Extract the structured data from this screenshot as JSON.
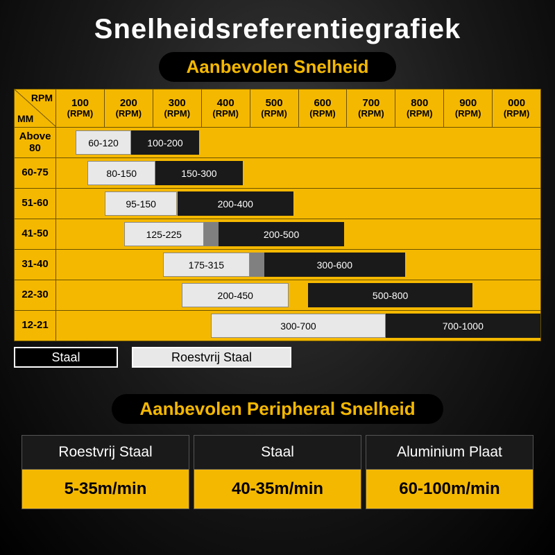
{
  "title": "Snelheidsreferentiegrafiek",
  "subtitle": "Aanbevolen Snelheid",
  "colors": {
    "accent": "#f5b800",
    "bg_dark": "#1a1a1a",
    "bar_light": "#e8e8e8",
    "bar_gray": "#808080",
    "border": "#6a5200"
  },
  "corner": {
    "top": "RPM",
    "bottom": "MM"
  },
  "columns": [
    {
      "n": "100",
      "u": "(RPM)"
    },
    {
      "n": "200",
      "u": "(RPM)"
    },
    {
      "n": "300",
      "u": "(RPM)"
    },
    {
      "n": "400",
      "u": "(RPM)"
    },
    {
      "n": "500",
      "u": "(RPM)"
    },
    {
      "n": "600",
      "u": "(RPM)"
    },
    {
      "n": "700",
      "u": "(RPM)"
    },
    {
      "n": "800",
      "u": "(RPM)"
    },
    {
      "n": "900",
      "u": "(RPM)"
    },
    {
      "n": "000",
      "u": "(RPM)"
    }
  ],
  "rows": [
    {
      "label": "Above 80",
      "bars": [
        {
          "kind": "light",
          "label": "60-120",
          "left": 4.0,
          "width": 11.5
        },
        {
          "kind": "dark",
          "label": "100-200",
          "left": 15.5,
          "width": 14.0
        }
      ]
    },
    {
      "label": "60-75",
      "bars": [
        {
          "kind": "light",
          "label": "80-150",
          "left": 6.5,
          "width": 14.0
        },
        {
          "kind": "dark",
          "label": "150-300",
          "left": 20.5,
          "width": 18.0
        }
      ]
    },
    {
      "label": "51-60",
      "bars": [
        {
          "kind": "light",
          "label": "95-150",
          "left": 10.0,
          "width": 15.0
        },
        {
          "kind": "dark",
          "label": "200-400",
          "left": 25.0,
          "width": 24.0
        }
      ]
    },
    {
      "label": "41-50",
      "bars": [
        {
          "kind": "light",
          "label": "125-225",
          "left": 14.0,
          "width": 16.5
        },
        {
          "kind": "gray",
          "label": "",
          "left": 30.5,
          "width": 3.0
        },
        {
          "kind": "dark",
          "label": "200-500",
          "left": 33.5,
          "width": 26.0
        }
      ]
    },
    {
      "label": "31-40",
      "bars": [
        {
          "kind": "light",
          "label": "175-315",
          "left": 22.0,
          "width": 18.0
        },
        {
          "kind": "gray",
          "label": "",
          "left": 40.0,
          "width": 3.0
        },
        {
          "kind": "dark",
          "label": "300-600",
          "left": 43.0,
          "width": 29.0
        }
      ]
    },
    {
      "label": "22-30",
      "bars": [
        {
          "kind": "light",
          "label": "200-450",
          "left": 26.0,
          "width": 22.0
        },
        {
          "kind": "dark",
          "label": "500-800",
          "left": 52.0,
          "width": 34.0
        }
      ]
    },
    {
      "label": "12-21",
      "bars": [
        {
          "kind": "light",
          "label": "300-700",
          "left": 32.0,
          "width": 36.0
        },
        {
          "kind": "dark",
          "label": "700-1000",
          "left": 68.0,
          "width": 32.0
        }
      ]
    }
  ],
  "legend": [
    {
      "kind": "dark",
      "label": "Staal"
    },
    {
      "kind": "light",
      "label": "Roestvrij Staal"
    }
  ],
  "peripheral_title": "Aanbevolen Peripheral Snelheid",
  "peripheral": [
    {
      "h": "Roestvrij Staal",
      "v": "5-35m/min"
    },
    {
      "h": "Staal",
      "v": "40-35m/min"
    },
    {
      "h": "Aluminium Plaat",
      "v": "60-100m/min"
    }
  ]
}
